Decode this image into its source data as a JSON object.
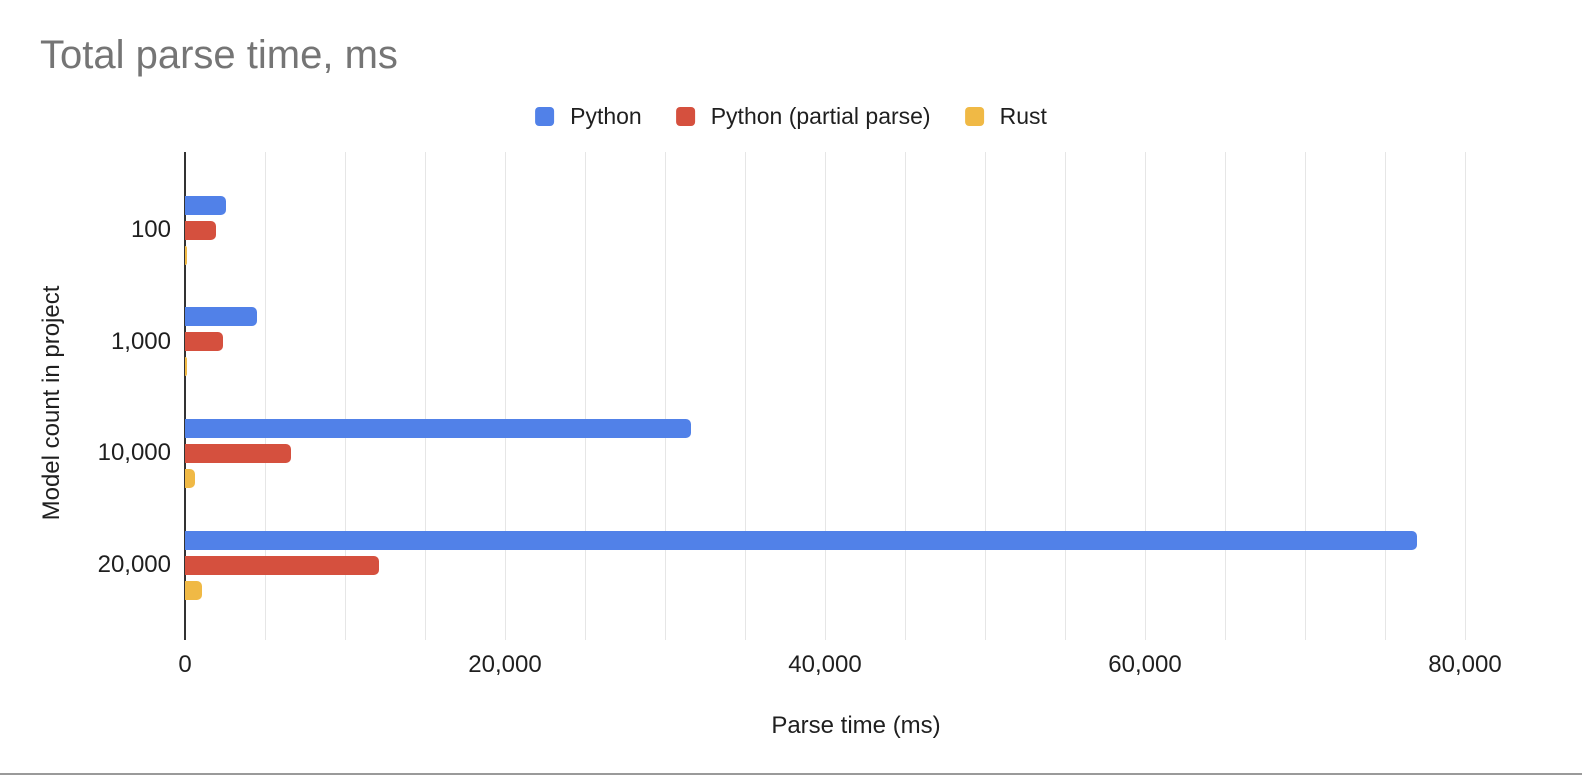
{
  "chart_data": {
    "type": "bar",
    "orientation": "horizontal",
    "title": "Total parse time, ms",
    "xlabel": "Parse time (ms)",
    "ylabel": "Model count in project",
    "categories": [
      "100",
      "1,000",
      "10,000",
      "20,000"
    ],
    "series": [
      {
        "name": "Python",
        "color": "#5181E8",
        "values": [
          2550,
          4500,
          31600,
          77000
        ]
      },
      {
        "name": "Python (partial parse)",
        "color": "#D5503E",
        "values": [
          1950,
          2400,
          6650,
          12100
        ]
      },
      {
        "name": "Rust",
        "color": "#F0B945",
        "values": [
          90,
          90,
          600,
          1050
        ]
      }
    ],
    "xlim": [
      0,
      83500
    ],
    "grid": true,
    "gridline_step": 5000,
    "x_ticks": [
      {
        "value": 0,
        "label": "0"
      },
      {
        "value": 20000,
        "label": "20,000"
      },
      {
        "value": 40000,
        "label": "40,000"
      },
      {
        "value": 60000,
        "label": "60,000"
      },
      {
        "value": 80000,
        "label": "80,000"
      }
    ],
    "legend_position": "top",
    "colors": {
      "title_text": "#757575",
      "label_text": "#1F1F1F",
      "gridline": "#E6E6E6",
      "axis_line": "#333333",
      "divider": "#9A9A9A"
    }
  }
}
